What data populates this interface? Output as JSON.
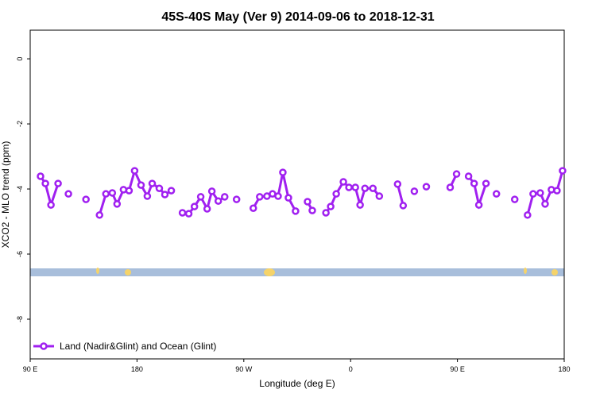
{
  "chart_data": {
    "type": "line",
    "title": "45S-40S May (Ver 9)   2014-09-06 to 2018-12-31",
    "xlabel": "Longitude (deg E)",
    "ylabel": "XCO2 - MLO trend (ppm)",
    "xlim": [
      90,
      540
    ],
    "ylim": [
      -9.22,
      0.88
    ],
    "xticks": [
      {
        "value": 90,
        "label": "90 E"
      },
      {
        "value": 180,
        "label": "180"
      },
      {
        "value": 270,
        "label": "90 W"
      },
      {
        "value": 360,
        "label": "0"
      },
      {
        "value": 450,
        "label": "90 E"
      },
      {
        "value": 540,
        "label": "180"
      }
    ],
    "yticks": [
      -8,
      -6,
      -4,
      -2,
      0
    ],
    "legend": "bottom-left",
    "series": [
      {
        "name": "Land (Nadir&Glint) and Ocean (Glint)",
        "color": "#a020f0",
        "x": [
          98.7,
          102.8,
          107.5,
          113.5,
          null,
          122.2,
          null,
          137.0,
          null,
          148.4,
          153.8,
          159.2,
          163.2,
          168.6,
          173.3,
          178.0,
          183.4,
          188.7,
          192.8,
          198.8,
          203.5,
          208.9,
          null,
          218.3,
          223.6,
          228.4,
          233.7,
          239.1,
          243.1,
          248.5,
          253.9,
          null,
          263.9,
          null,
          278.0,
          283.4,
          289.5,
          294.2,
          298.9,
          302.9,
          307.6,
          313.6,
          null,
          323.7,
          327.7,
          null,
          339.2,
          343.2,
          347.9,
          353.9,
          358.6,
          364.0,
          368.0,
          372.1,
          378.8,
          384.2,
          null,
          399.6,
          404.3,
          null,
          413.7,
          null,
          423.8,
          null,
          443.9,
          449.3,
          null,
          459.4,
          464.1,
          468.1,
          474.1,
          null,
          482.9,
          null,
          498.3,
          null,
          509.1,
          513.8,
          519.8,
          523.9,
          529.2,
          533.9,
          538.6
        ],
        "values": [
          -3.61,
          -3.83,
          -4.49,
          -3.83,
          null,
          -4.15,
          null,
          -4.32,
          null,
          -4.8,
          -4.15,
          -4.12,
          -4.46,
          -4.02,
          -4.05,
          -3.44,
          -3.88,
          -4.22,
          -3.83,
          -3.98,
          -4.17,
          -4.05,
          null,
          -4.73,
          -4.76,
          -4.54,
          -4.24,
          -4.61,
          -4.07,
          -4.37,
          -4.24,
          null,
          -4.32,
          null,
          -4.59,
          -4.24,
          -4.22,
          -4.15,
          -4.22,
          -3.49,
          -4.27,
          -4.68,
          null,
          -4.39,
          -4.66,
          null,
          -4.73,
          -4.54,
          -4.15,
          -3.78,
          -3.95,
          -3.95,
          -4.49,
          -3.98,
          -3.98,
          -4.22,
          null,
          -3.85,
          -4.51,
          null,
          -4.07,
          null,
          -3.93,
          null,
          -3.95,
          -3.54,
          null,
          -3.61,
          -3.83,
          -4.49,
          -3.83,
          null,
          -4.15,
          null,
          -4.32,
          null,
          -4.8,
          -4.15,
          -4.12,
          -4.46,
          -4.02,
          -4.05,
          -3.44
        ]
      }
    ]
  }
}
